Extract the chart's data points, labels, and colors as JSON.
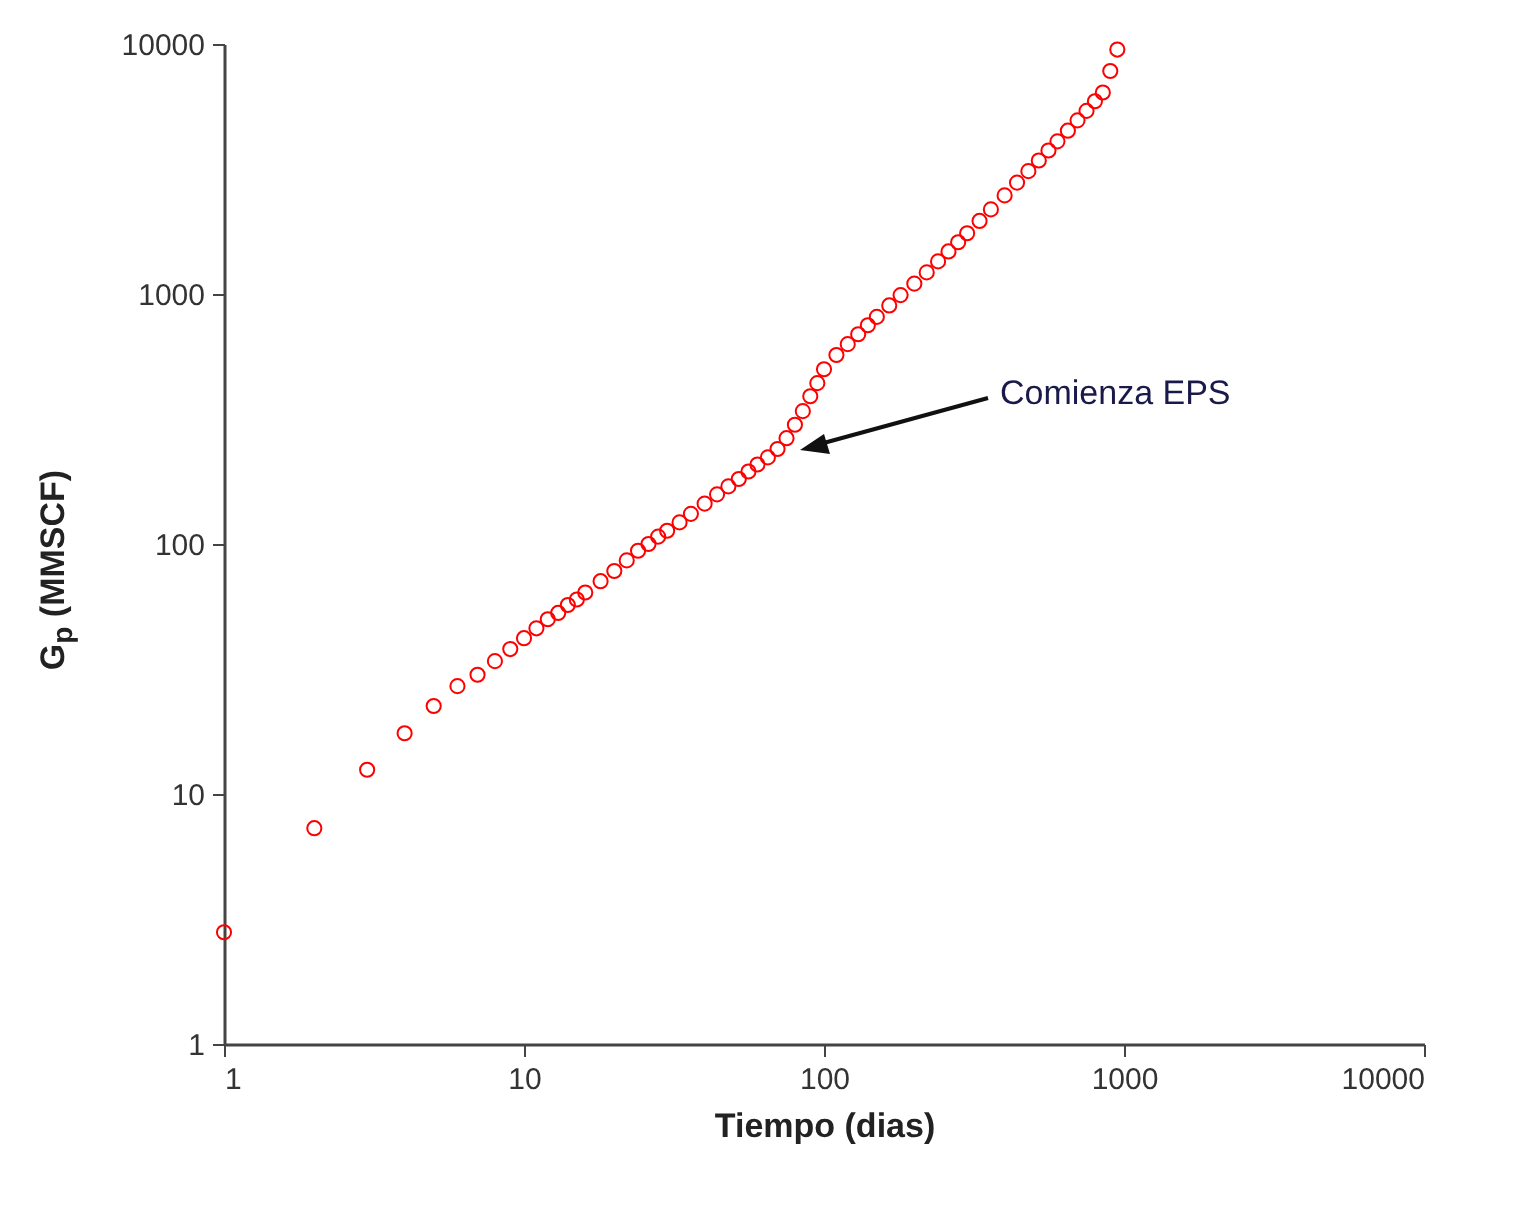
{
  "chart_data": {
    "type": "scatter",
    "xlabel": "Tiempo (dias)",
    "ylabel": "G$_{p}$ (MMSCF)",
    "log": "xy",
    "xlim": [
      1,
      10000
    ],
    "xticks": [
      1,
      10,
      100,
      1000,
      10000
    ],
    "ylim": [
      1,
      10000
    ],
    "yticks": [
      1,
      10,
      100,
      1000,
      10000
    ],
    "grid": false,
    "marker": "circle",
    "annotations": [
      "Comienza EPS"
    ],
    "series": [
      {
        "color": "#ff0000",
        "x": [
          1,
          2,
          3,
          4,
          5,
          6,
          7,
          8,
          9,
          10,
          11,
          12,
          13,
          14,
          15,
          16,
          18,
          20,
          22,
          24,
          26,
          28,
          30,
          33,
          36,
          40,
          44,
          48,
          52,
          56,
          60,
          65,
          70,
          75,
          80,
          85,
          90,
          95,
          100,
          110,
          120,
          130,
          140,
          150,
          165,
          180,
          200,
          220,
          240,
          260,
          280,
          300,
          330,
          360,
          400,
          440,
          480,
          520,
          560,
          600,
          650,
          700,
          750,
          800,
          850,
          900,
          950
        ],
        "values": [
          2.8,
          7.3,
          12.5,
          17.5,
          22.5,
          27,
          30,
          34,
          38,
          42,
          46,
          50,
          53,
          57,
          60,
          64,
          71,
          78,
          86,
          94,
          100,
          107,
          113,
          122,
          132,
          145,
          158,
          170,
          182,
          195,
          208,
          222,
          240,
          265,
          300,
          340,
          390,
          440,
          500,
          570,
          630,
          690,
          750,
          810,
          900,
          990,
          1100,
          1220,
          1350,
          1480,
          1610,
          1750,
          1960,
          2180,
          2480,
          2790,
          3100,
          3420,
          3750,
          4080,
          4500,
          4950,
          5400,
          5900,
          6400,
          7800,
          9500
        ]
      }
    ]
  }
}
